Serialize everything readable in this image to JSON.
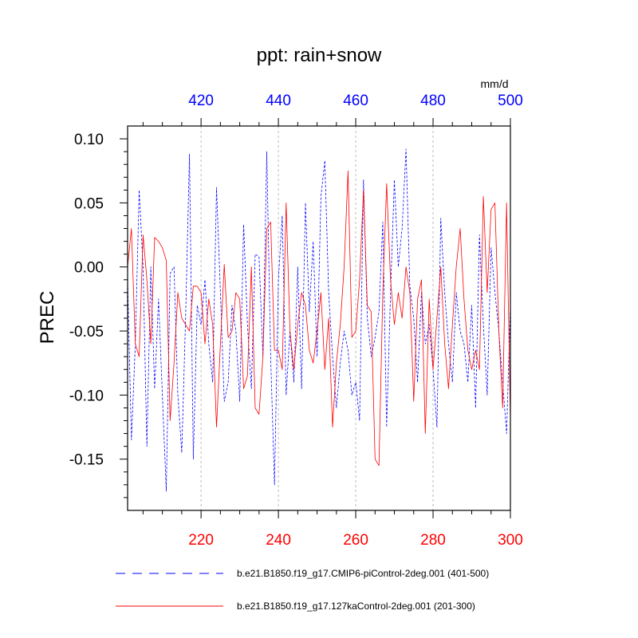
{
  "chart_data": {
    "type": "line",
    "title": "ppt: rain+snow",
    "ylabel": "PREC",
    "units": "mm/d",
    "ylim": [
      -0.19,
      0.11
    ],
    "yticks": [
      0.1,
      0.05,
      0.0,
      -0.05,
      -0.1,
      -0.15
    ],
    "ytick_labels": [
      "0.10",
      "0.05",
      "0.00",
      "-0.05",
      "-0.10",
      "-0.15"
    ],
    "bottom_axis": {
      "range": [
        201,
        300
      ],
      "ticks": [
        220,
        240,
        260,
        280,
        300
      ],
      "tick_labels": [
        "220",
        "240",
        "260",
        "280",
        "300"
      ],
      "color": "#ff0000"
    },
    "top_axis": {
      "range": [
        401,
        500
      ],
      "ticks": [
        420,
        440,
        460,
        480,
        500
      ],
      "tick_labels": [
        "420",
        "440",
        "460",
        "480",
        "500"
      ],
      "color": "#0000ff"
    },
    "grid_x": true,
    "series": [
      {
        "name": "b.e21.B1850.f19_g17.CMIP6-piControl-2deg.001 (401-500)",
        "color": "#0000ff",
        "style": "dashed",
        "axis": "top",
        "x_start": 401,
        "values": [
          -0.01,
          -0.135,
          -0.06,
          0.06,
          0.0,
          -0.14,
          0.0,
          -0.095,
          -0.025,
          -0.1,
          -0.175,
          -0.005,
          0.0,
          -0.1,
          -0.145,
          -0.04,
          0.088,
          -0.15,
          -0.03,
          -0.045,
          -0.01,
          -0.06,
          -0.09,
          0.062,
          -0.02,
          -0.105,
          -0.09,
          -0.03,
          -0.05,
          -0.105,
          0.033,
          -0.045,
          -0.095,
          0.01,
          0.008,
          -0.07,
          0.09,
          -0.07,
          -0.17,
          -0.01,
          0.04,
          -0.1,
          -0.05,
          -0.09,
          0.0,
          -0.095,
          0.05,
          -0.035,
          0.02,
          -0.07,
          0.055,
          0.083,
          -0.02,
          -0.07,
          -0.11,
          -0.075,
          -0.05,
          -0.065,
          -0.1,
          -0.09,
          -0.12,
          0.068,
          -0.04,
          -0.07,
          -0.055,
          -0.035,
          0.035,
          -0.125,
          -0.02,
          0.068,
          0.0,
          0.03,
          0.092,
          -0.015,
          -0.04,
          -0.09,
          -0.02,
          -0.06,
          -0.045,
          -0.08,
          -0.125,
          0.038,
          -0.02,
          -0.06,
          -0.09,
          -0.02,
          -0.05,
          -0.06,
          -0.09,
          -0.03,
          -0.11,
          0.025,
          -0.045,
          -0.1,
          0.015,
          -0.02,
          -0.05,
          -0.09,
          -0.13,
          -0.03
        ]
      },
      {
        "name": "b.e21.B1850.f19_g17.127kaControl-2deg.001 (201-300)",
        "color": "#ff0000",
        "style": "solid",
        "axis": "bottom",
        "x_start": 201,
        "values": [
          0.0,
          0.03,
          -0.06,
          -0.07,
          0.025,
          -0.01,
          -0.06,
          0.023,
          0.02,
          0.015,
          0.005,
          -0.12,
          -0.075,
          -0.02,
          -0.04,
          -0.045,
          -0.05,
          -0.015,
          -0.015,
          -0.02,
          -0.06,
          -0.025,
          -0.045,
          -0.125,
          -0.06,
          0.002,
          -0.055,
          -0.05,
          -0.02,
          -0.025,
          -0.095,
          -0.085,
          0.0,
          -0.11,
          -0.115,
          -0.07,
          0.03,
          0.035,
          -0.065,
          -0.065,
          -0.08,
          0.05,
          -0.05,
          -0.08,
          -0.045,
          -0.02,
          -0.03,
          -0.065,
          -0.075,
          -0.05,
          -0.02,
          -0.08,
          -0.04,
          -0.125,
          -0.075,
          -0.045,
          0.0,
          0.075,
          -0.055,
          -0.05,
          -0.01,
          0.06,
          -0.03,
          -0.035,
          -0.15,
          -0.155,
          -0.02,
          0.065,
          -0.01,
          -0.045,
          -0.02,
          -0.04,
          0.0,
          -0.02,
          -0.105,
          -0.025,
          -0.01,
          -0.13,
          -0.025,
          -0.08,
          -0.04,
          0.0,
          -0.06,
          -0.095,
          -0.045,
          0.0,
          0.03,
          -0.025,
          -0.065,
          -0.08,
          -0.065,
          -0.08,
          0.055,
          -0.02,
          0.045,
          0.05,
          -0.05,
          -0.11,
          0.05,
          -0.12
        ]
      }
    ]
  }
}
